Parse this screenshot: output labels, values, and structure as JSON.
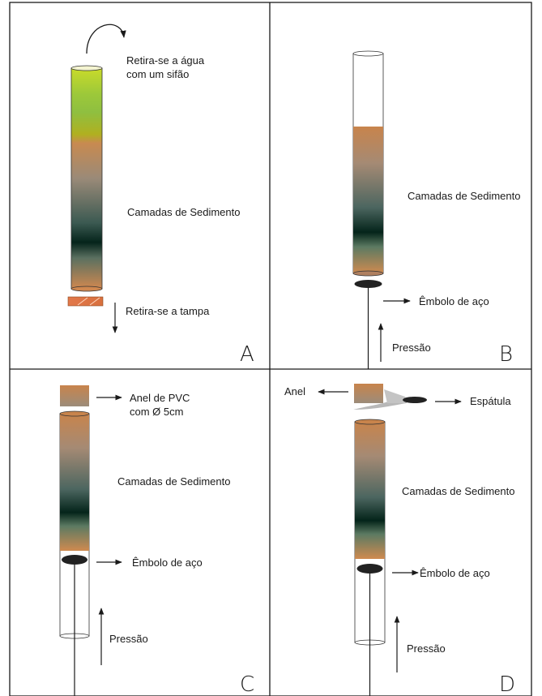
{
  "panels": {
    "a": {
      "letter": "A",
      "siphon_label_1": "Retira-se a água",
      "siphon_label_2": "com um sifão",
      "layers_label": "Camadas de Sedimento",
      "cap_label": "Retira-se a tampa"
    },
    "b": {
      "letter": "B",
      "layers_label": "Camadas de Sedimento",
      "piston_label": "Êmbolo de aço",
      "pressure_label": "Pressão"
    },
    "c": {
      "letter": "C",
      "ring_label_1": "Anel de PVC",
      "ring_label_2": "com Ø 5cm",
      "layers_label": "Camadas de Sedimento",
      "piston_label": "Êmbolo de aço",
      "pressure_label": "Pressão"
    },
    "d": {
      "letter": "D",
      "ring_label": "Anel",
      "spatula_label": "Espátula",
      "layers_label": "Camadas de Sedimento",
      "piston_label": "Êmbolo de aço",
      "pressure_label": "Pressão"
    }
  },
  "colors": {
    "water_top": "#c8d82a",
    "water_mid": "#8ab83a",
    "sediment_orange": "#c88a55",
    "sediment_dark": "#0a2a20",
    "cap": "#e2784a",
    "piston": "#222222",
    "spatula": "#b8b8b8"
  }
}
